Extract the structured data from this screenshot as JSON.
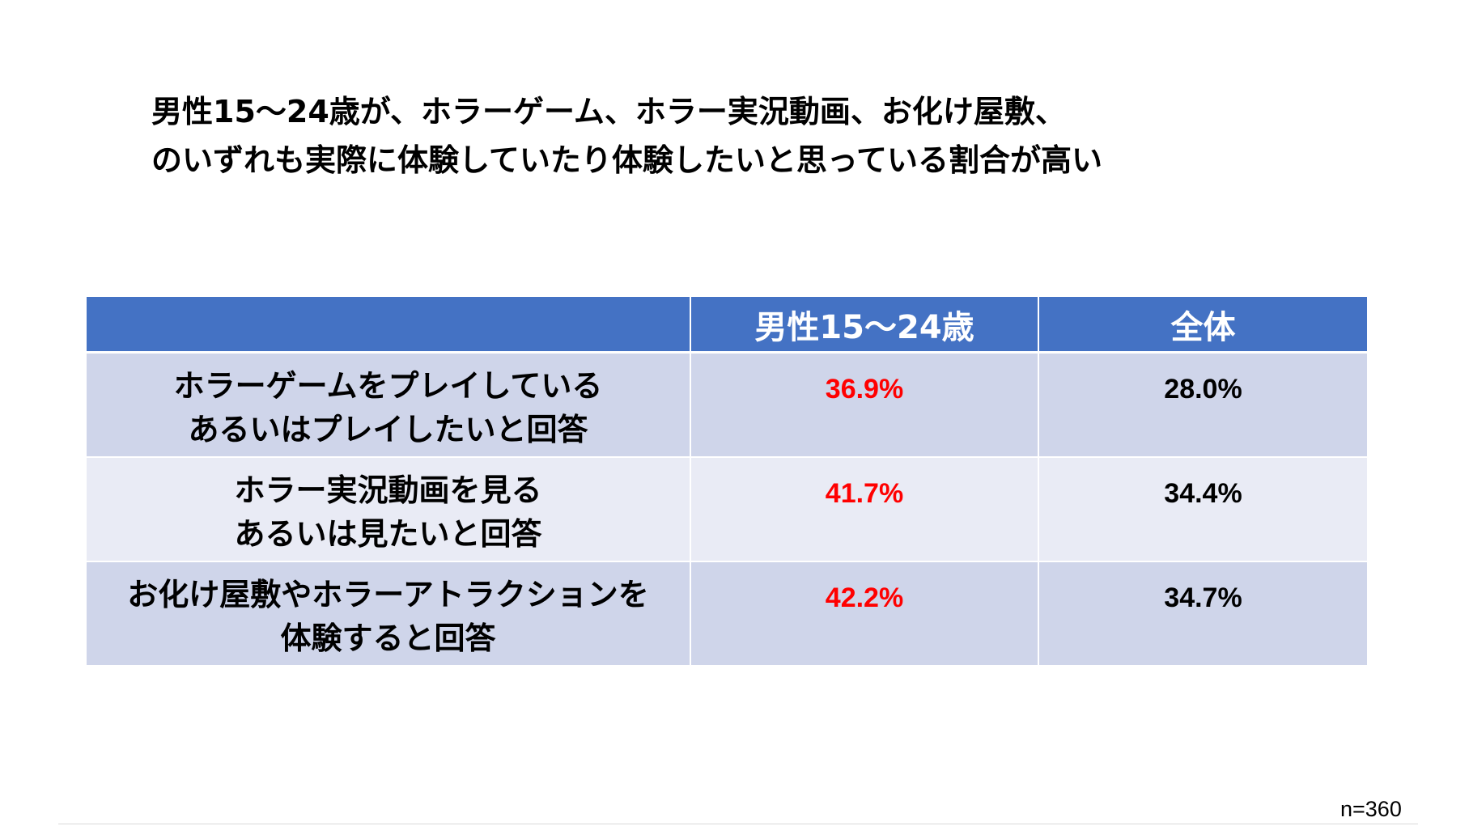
{
  "title": {
    "line1": "男性15～24歳が、ホラーゲーム、ホラー実況動画、お化け屋敷、",
    "line2": "のいずれも実際に体験していたり体験したいと思っている割合が高い"
  },
  "table": {
    "columns": [
      "",
      "男性15～24歳",
      "全体"
    ],
    "rows": [
      {
        "label_line1": "ホラーゲームをプレイしている",
        "label_line2": "あるいはプレイしたいと回答",
        "male_15_24": "36.9%",
        "overall": "28.0%"
      },
      {
        "label_line1": "ホラー実況動画を見る",
        "label_line2": "あるいは見たいと回答",
        "male_15_24": "41.7%",
        "overall": "34.4%"
      },
      {
        "label_line1": "お化け屋敷やホラーアトラクションを",
        "label_line2": "体験すると回答",
        "male_15_24": "42.2%",
        "overall": "34.7%"
      }
    ]
  },
  "sample_size": "n=360",
  "colors": {
    "header_bg": "#4472c4",
    "row_dark": "#cfd5ea",
    "row_light": "#e9ebf5",
    "highlight_text": "#ff0000",
    "normal_text": "#000000"
  }
}
